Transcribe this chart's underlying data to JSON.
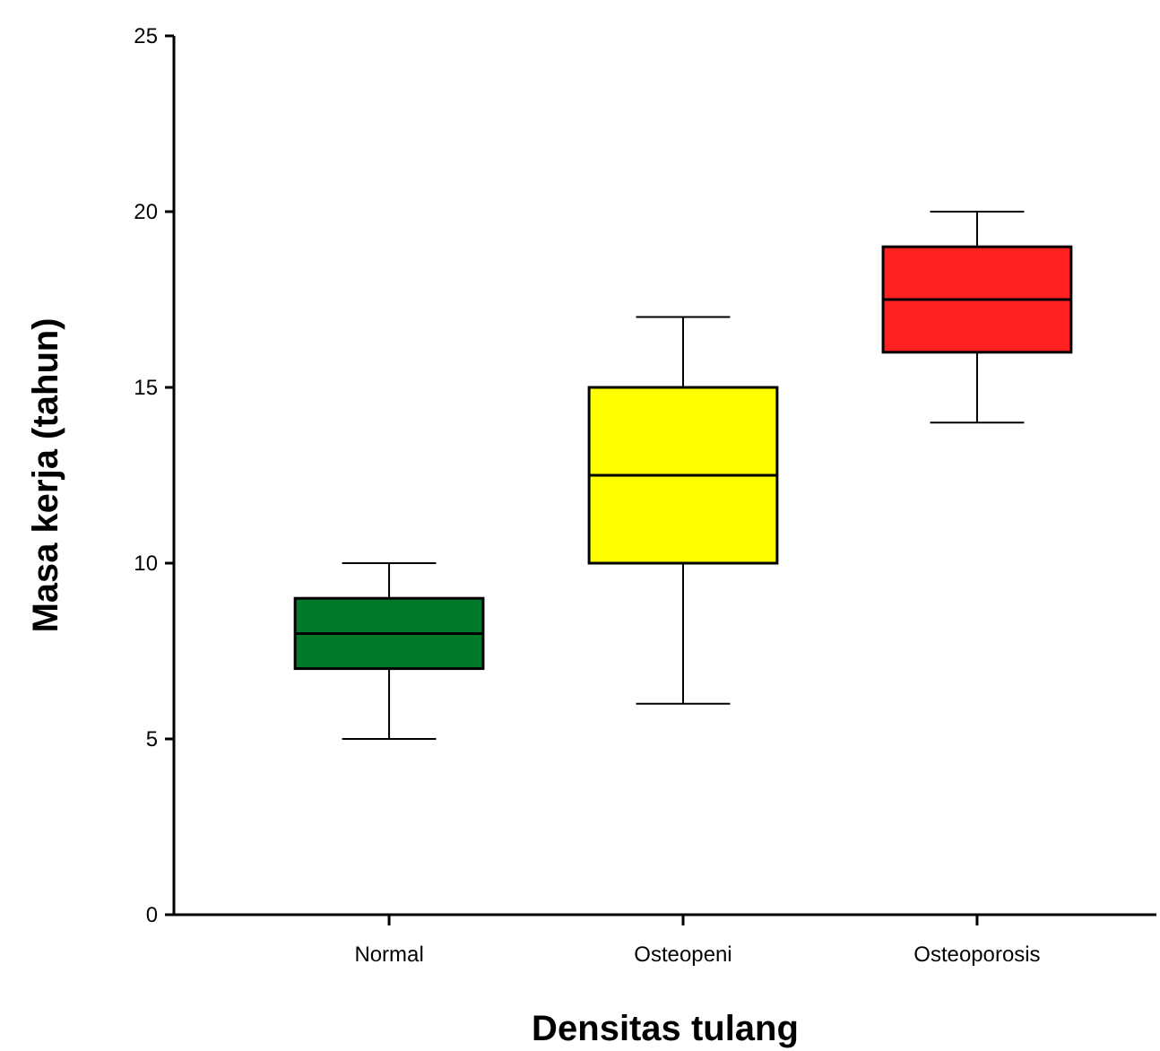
{
  "chart_data": {
    "type": "box",
    "xlabel": "Densitas tulang",
    "ylabel": "Masa kerja (tahun)",
    "categories": [
      "Normal",
      "Osteopeni",
      "Osteoporosis"
    ],
    "boxes": [
      {
        "low": 5,
        "q1": 7,
        "median": 8,
        "q3": 9,
        "high": 10
      },
      {
        "low": 6,
        "q1": 10,
        "median": 12.5,
        "q3": 15,
        "high": 17
      },
      {
        "low": 14,
        "q1": 16,
        "median": 17.5,
        "q3": 19,
        "high": 20
      }
    ],
    "colors": [
      "#007a2a",
      "#ffff00",
      "#ff2020"
    ],
    "ylim": [
      0,
      25
    ],
    "yticks": [
      0,
      5,
      10,
      15,
      20,
      25
    ]
  }
}
